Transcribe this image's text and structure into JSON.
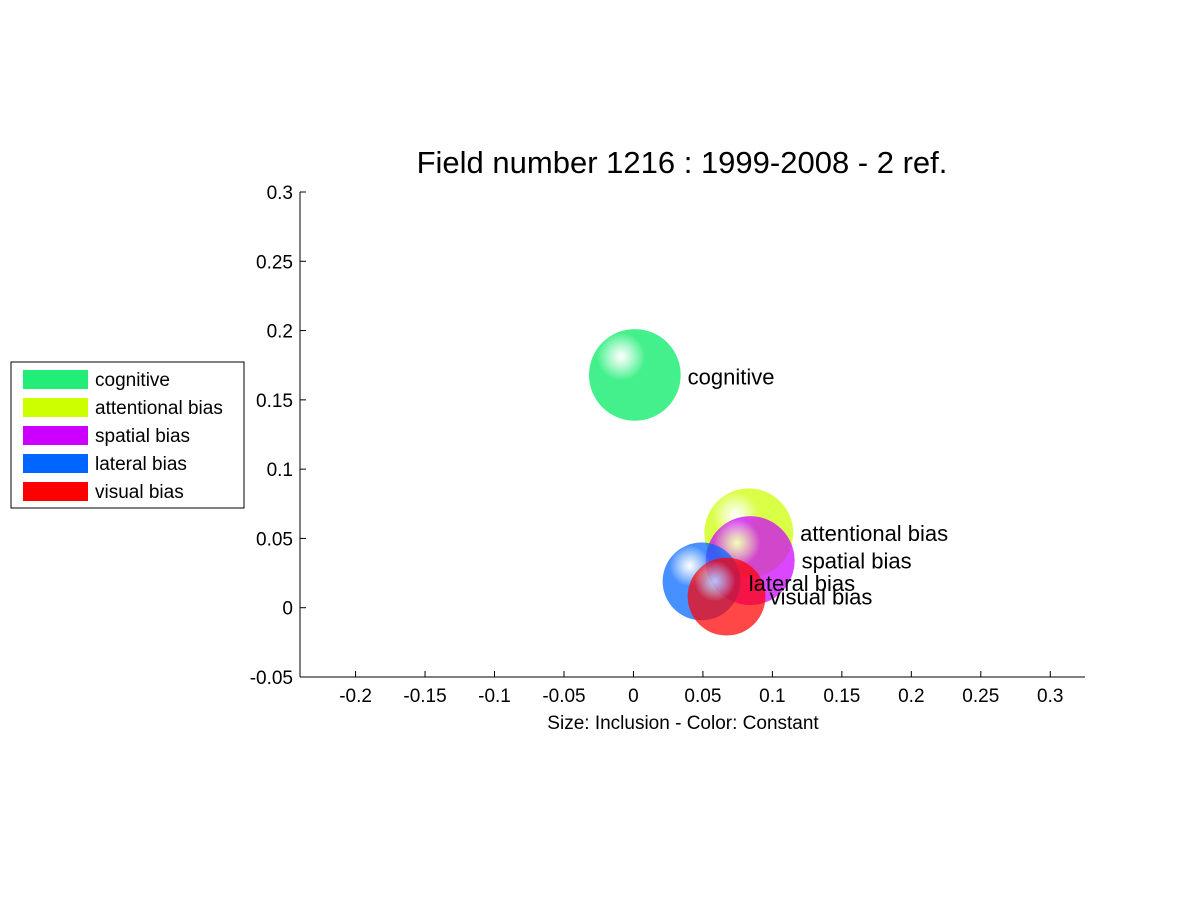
{
  "chart_data": {
    "type": "scatter",
    "title": "Field number 1216 : 1999-2008  - 2 ref.",
    "xlabel": "Size: Inclusion - Color: Constant",
    "ylabel": "",
    "xlim": [
      -0.24,
      0.325
    ],
    "ylim": [
      -0.05,
      0.3
    ],
    "xticks": [
      -0.2,
      -0.15,
      -0.1,
      -0.05,
      0,
      0.05,
      0.1,
      0.15,
      0.2,
      0.25,
      0.3
    ],
    "xtick_labels": [
      "-0.2",
      "-0.15",
      "-0.1",
      "-0.05",
      "0",
      "0.05",
      "0.1",
      "0.15",
      "0.2",
      "0.25",
      "0.3"
    ],
    "yticks": [
      -0.05,
      0,
      0.05,
      0.1,
      0.15,
      0.2,
      0.25,
      0.3
    ],
    "ytick_labels": [
      "-0.05",
      "0",
      "0.05",
      "0.1",
      "0.15",
      "0.2",
      "0.25",
      "0.3"
    ],
    "grid": false,
    "legend_position": "left, outside plot",
    "series": [
      {
        "name": "cognitive",
        "x": 0.001,
        "y": 0.168,
        "size": 0.033,
        "color": "#22ee77"
      },
      {
        "name": "attentional bias",
        "x": 0.083,
        "y": 0.054,
        "size": 0.032,
        "color": "#ccff00"
      },
      {
        "name": "spatial bias",
        "x": 0.084,
        "y": 0.034,
        "size": 0.032,
        "color": "#cc00ff"
      },
      {
        "name": "lateral bias",
        "x": 0.049,
        "y": 0.019,
        "size": 0.028,
        "color": "#0066ff"
      },
      {
        "name": "visual bias",
        "x": 0.067,
        "y": 0.008,
        "size": 0.028,
        "color": "#ff0000"
      }
    ],
    "labels": [
      {
        "text": "cognitive",
        "x": 0.039,
        "y": 0.167
      },
      {
        "text": "attentional bias",
        "x": 0.12,
        "y": 0.054
      },
      {
        "text": "spatial bias",
        "x": 0.121,
        "y": 0.034
      },
      {
        "text": "lateral bias",
        "x": 0.083,
        "y": 0.018
      },
      {
        "text": "visual bias",
        "x": 0.098,
        "y": 0.008
      }
    ]
  }
}
